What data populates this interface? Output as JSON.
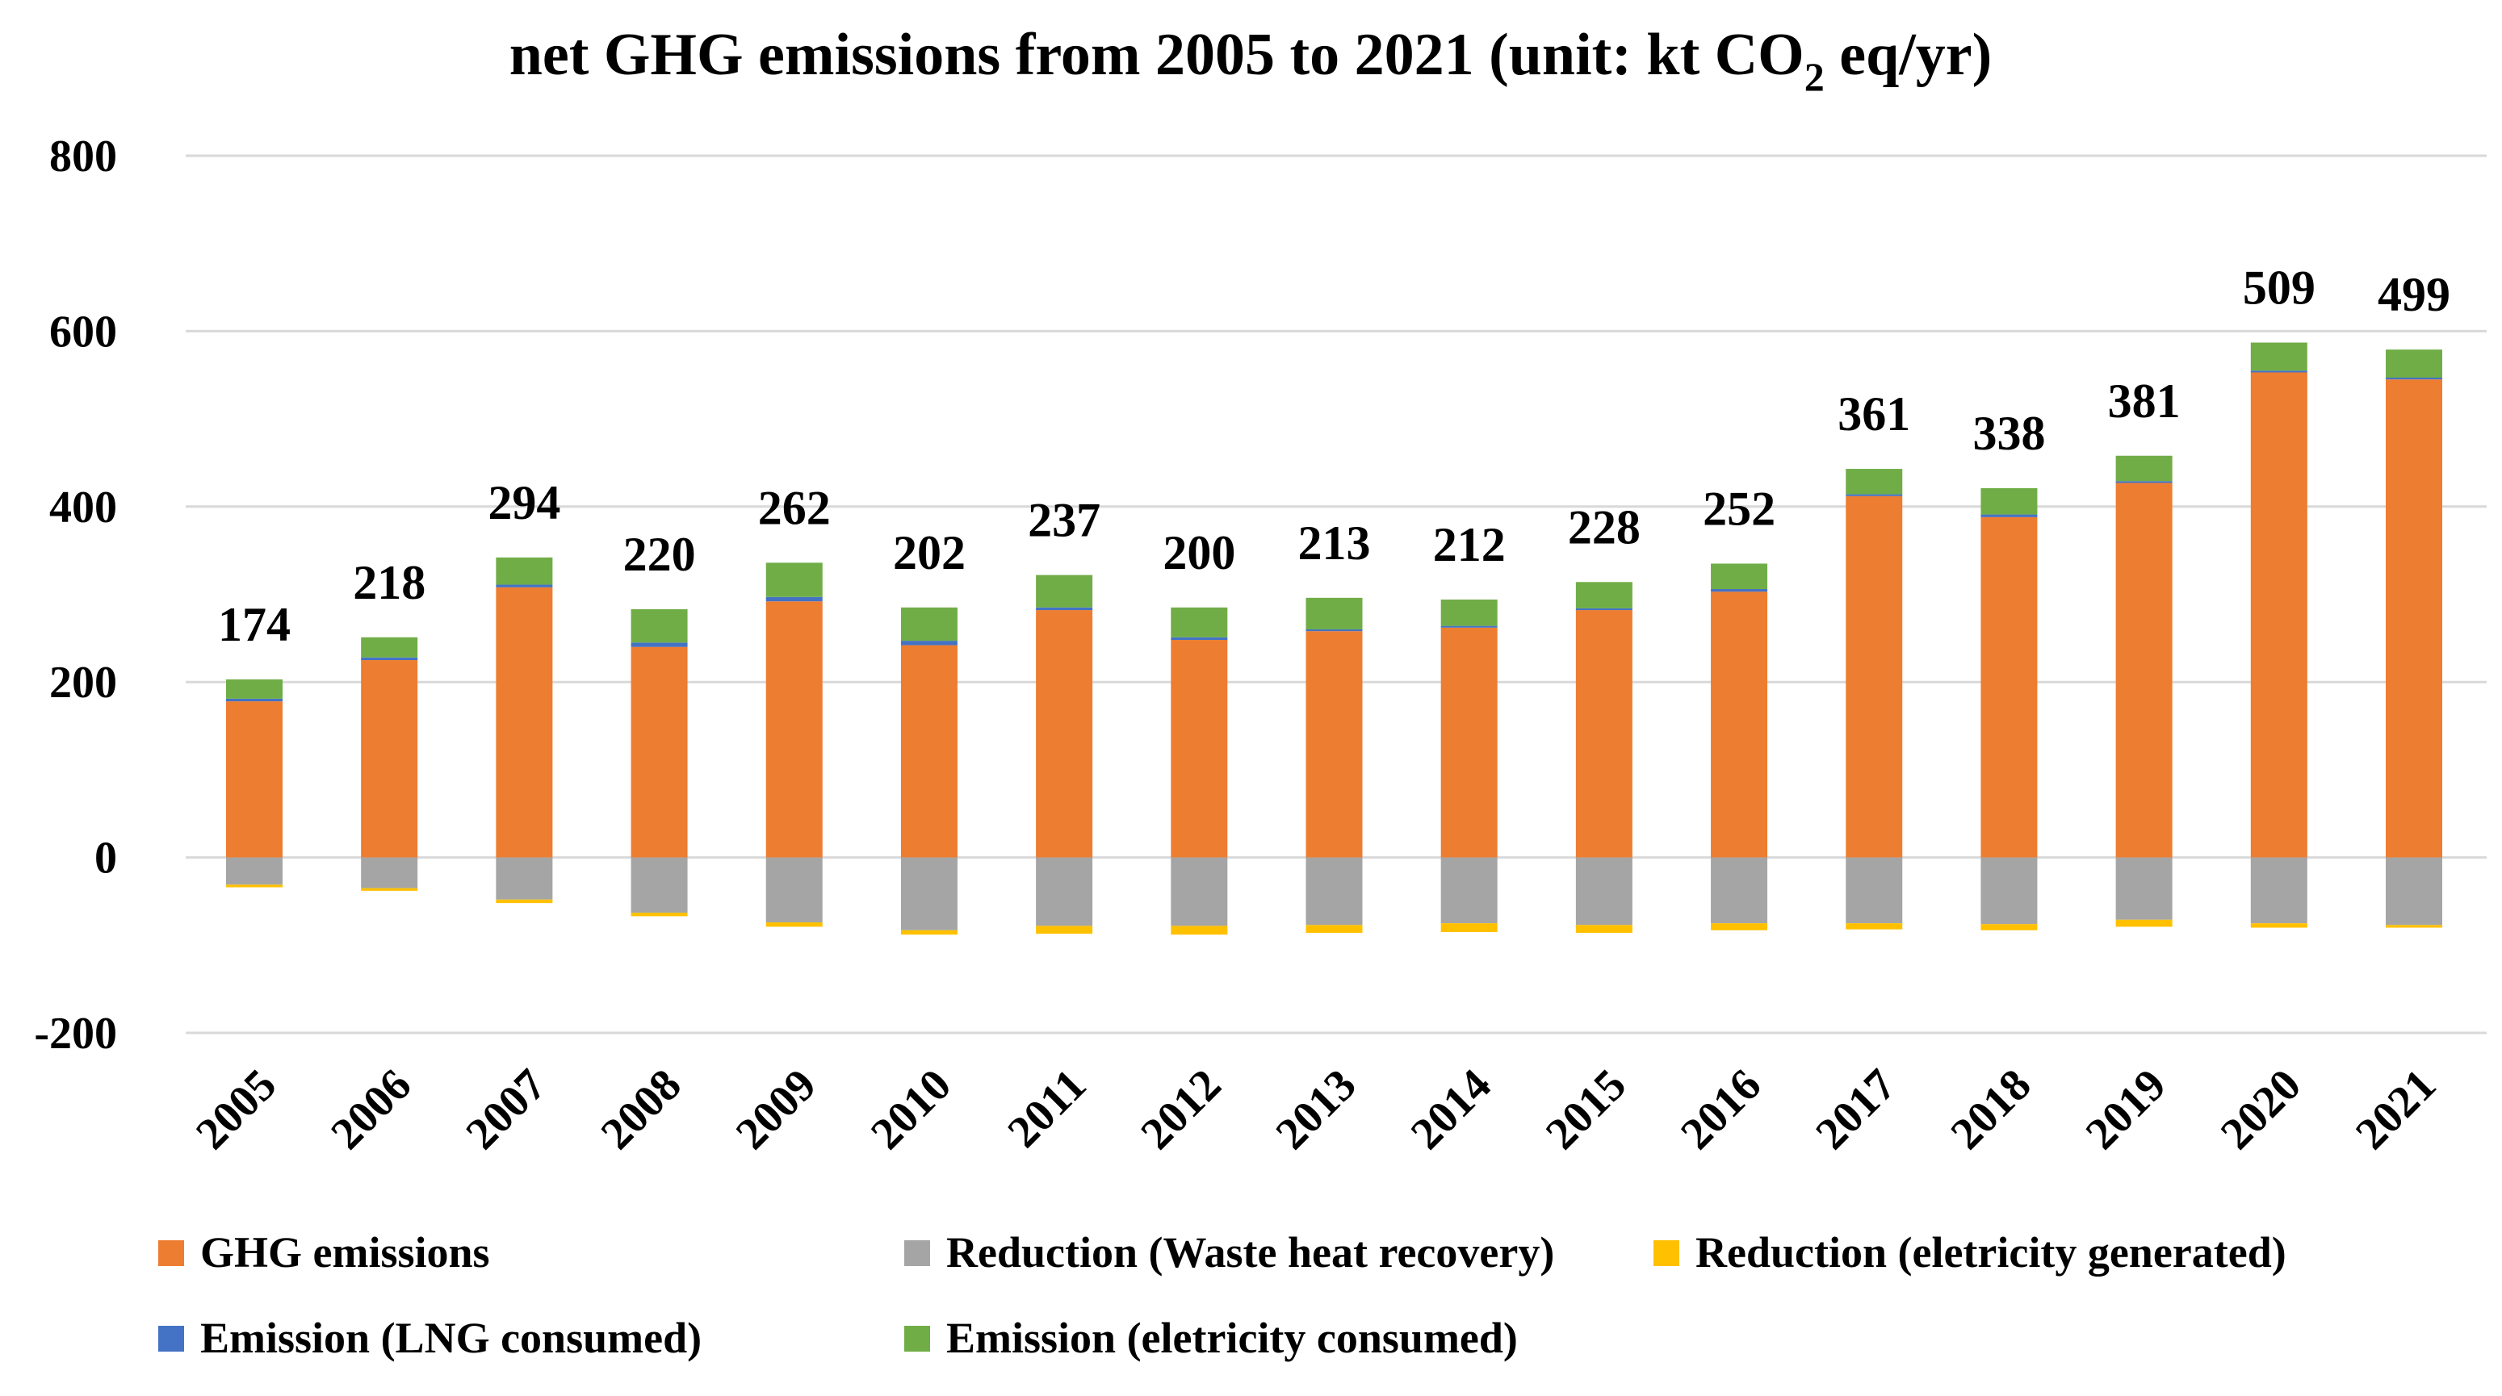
{
  "chart_data": {
    "type": "bar",
    "stacked": true,
    "title_main": "net GHG emissions from 2005 to 2021 (unit: kt CO",
    "title_sub": "2",
    "title_tail": " eq/yr)",
    "categories": [
      "2005",
      "2006",
      "2007",
      "2008",
      "2009",
      "2010",
      "2011",
      "2012",
      "2013",
      "2014",
      "2015",
      "2016",
      "2017",
      "2018",
      "2019",
      "2020",
      "2021"
    ],
    "ylim": [
      -200,
      800
    ],
    "yticks": [
      -200,
      0,
      200,
      400,
      600,
      800
    ],
    "ytick_labels": [
      "-200",
      "0",
      "200",
      "400",
      "600",
      "800"
    ],
    "grid": true,
    "legend_position": "bottom",
    "net_labels": [
      "174",
      "218",
      "294",
      "220",
      "262",
      "202",
      "237",
      "200",
      "213",
      "212",
      "228",
      "252",
      "361",
      "338",
      "381",
      "509",
      "499"
    ],
    "series": [
      {
        "name": "GHG emissions",
        "color": "#ED7D31",
        "values": [
          178,
          225,
          308,
          240,
          292,
          242,
          282,
          248,
          258,
          262,
          282,
          303,
          412,
          388,
          427,
          553,
          545
        ]
      },
      {
        "name": "Reduction (Waste heat recovery)",
        "color": "#A5A5A5",
        "values": [
          -31,
          -35,
          -48,
          -63,
          -74,
          -83,
          -78,
          -78,
          -77,
          -75,
          -77,
          -75,
          -75,
          -76,
          -71,
          -75,
          -77
        ]
      },
      {
        "name": "Reduction (eletricity generated)",
        "color": "#FFC000",
        "values": [
          -3,
          -3,
          -4,
          -4,
          -5,
          -5,
          -9,
          -10,
          -9,
          -10,
          -9,
          -8,
          -7,
          -7,
          -8,
          -5,
          -3
        ]
      },
      {
        "name": "Emission (LNG consumed)",
        "color": "#4472C4",
        "values": [
          3,
          3,
          3,
          5,
          5,
          5,
          3,
          3,
          2,
          2,
          2,
          3,
          2,
          3,
          2,
          2,
          2
        ]
      },
      {
        "name": "Emission (eletricity consumed)",
        "color": "#70AD47",
        "values": [
          22,
          23,
          31,
          38,
          39,
          38,
          37,
          34,
          36,
          30,
          30,
          29,
          29,
          30,
          29,
          32,
          32
        ]
      }
    ]
  }
}
